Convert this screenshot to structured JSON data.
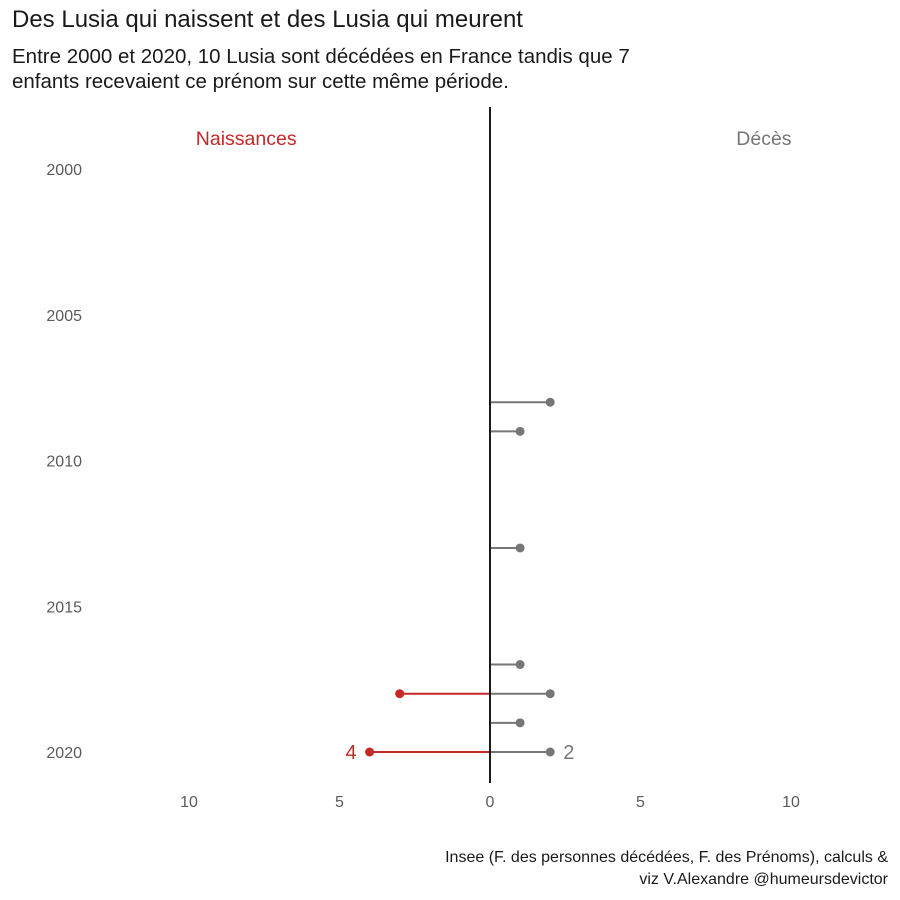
{
  "header": {
    "title": "Des Lusia qui naissent et des Lusia qui meurent",
    "subtitle_line1": "Entre 2000 et 2020, 10 Lusia sont décédées en France tandis que 7",
    "subtitle_line2": "enfants recevaient ce prénom sur cette même période."
  },
  "footer": {
    "caption_line1": "Insee (F. des personnes décédées, F. des Prénoms), calculs &",
    "caption_line2": "viz V.Alexandre @humeursdevictor"
  },
  "colors": {
    "births": "#c62828",
    "deaths": "#767676",
    "axis": "#1a1a1a"
  },
  "chart_data": {
    "type": "lollipop",
    "orientation": "horizontal",
    "xlim": [
      -12,
      12
    ],
    "ylim": [
      2000,
      2020
    ],
    "x_ticks": [
      {
        "value": -10,
        "label": "10"
      },
      {
        "value": -5,
        "label": "5"
      },
      {
        "value": 0,
        "label": "0"
      },
      {
        "value": 5,
        "label": "5"
      },
      {
        "value": 10,
        "label": "10"
      }
    ],
    "y_ticks": [
      2000,
      2005,
      2010,
      2015,
      2020
    ],
    "grid": false,
    "group_labels": {
      "births": "Naissances",
      "deaths": "Décès"
    },
    "births": [
      {
        "year": 2018,
        "value": 3
      },
      {
        "year": 2020,
        "value": 4
      }
    ],
    "deaths": [
      {
        "year": 2008,
        "value": 2
      },
      {
        "year": 2009,
        "value": 1
      },
      {
        "year": 2013,
        "value": 1
      },
      {
        "year": 2017,
        "value": 1
      },
      {
        "year": 2018,
        "value": 2
      },
      {
        "year": 2019,
        "value": 1
      },
      {
        "year": 2020,
        "value": 2
      }
    ],
    "annotations": [
      {
        "text": "4",
        "series": "births",
        "year": 2020,
        "value": 4
      },
      {
        "text": "2",
        "series": "deaths",
        "year": 2020,
        "value": 2
      }
    ]
  }
}
